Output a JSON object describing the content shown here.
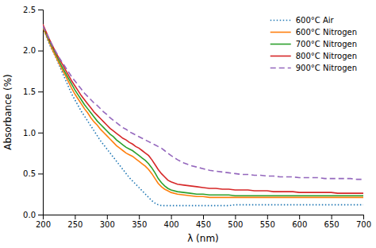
{
  "chart_data": {
    "type": "line",
    "xlabel": "λ (nm)",
    "ylabel": "Absorbance (%)",
    "xlim": [
      200,
      700
    ],
    "ylim": [
      0,
      2.5
    ],
    "xticks": [
      200,
      250,
      300,
      350,
      400,
      450,
      500,
      550,
      600,
      650,
      700
    ],
    "yticks": [
      {
        "value": 0,
        "label": "0.0"
      },
      0.5,
      {
        "value": 1.0,
        "label": "1.0"
      },
      1.5,
      {
        "value": 2.0,
        "label": "2.0"
      },
      2.5
    ],
    "legend": "upper right",
    "grid": false,
    "x": [
      200,
      205,
      210,
      215,
      220,
      225,
      230,
      235,
      240,
      245,
      250,
      255,
      260,
      265,
      270,
      275,
      280,
      285,
      290,
      295,
      300,
      305,
      310,
      315,
      320,
      325,
      330,
      335,
      340,
      345,
      350,
      355,
      360,
      365,
      370,
      375,
      380,
      385,
      390,
      395,
      400,
      410,
      420,
      430,
      440,
      450,
      460,
      470,
      480,
      490,
      500,
      510,
      520,
      530,
      540,
      550,
      560,
      570,
      580,
      590,
      600,
      610,
      620,
      630,
      640,
      650,
      660,
      670,
      680,
      690,
      700
    ],
    "series": [
      {
        "name": "600°C Air",
        "line_style": "dotted",
        "values": [
          2.28,
          2.18,
          2.08,
          2.0,
          1.92,
          1.83,
          1.74,
          1.65,
          1.56,
          1.47,
          1.4,
          1.33,
          1.26,
          1.2,
          1.14,
          1.08,
          1.02,
          0.96,
          0.9,
          0.85,
          0.8,
          0.75,
          0.7,
          0.65,
          0.6,
          0.55,
          0.5,
          0.45,
          0.41,
          0.37,
          0.33,
          0.29,
          0.25,
          0.21,
          0.17,
          0.14,
          0.12,
          0.11,
          0.11,
          0.11,
          0.11,
          0.11,
          0.11,
          0.11,
          0.11,
          0.11,
          0.11,
          0.11,
          0.11,
          0.11,
          0.12,
          0.12,
          0.12,
          0.12,
          0.12,
          0.12,
          0.12,
          0.12,
          0.12,
          0.12,
          0.12,
          0.12,
          0.12,
          0.12,
          0.12,
          0.12,
          0.12,
          0.12,
          0.12,
          0.12,
          0.12
        ]
      },
      {
        "name": "600°C Nitrogen",
        "line_style": "solid",
        "values": [
          2.28,
          2.19,
          2.1,
          2.01,
          1.93,
          1.85,
          1.77,
          1.7,
          1.62,
          1.54,
          1.47,
          1.41,
          1.35,
          1.29,
          1.24,
          1.18,
          1.13,
          1.09,
          1.04,
          1.0,
          0.96,
          0.92,
          0.88,
          0.84,
          0.81,
          0.78,
          0.75,
          0.73,
          0.71,
          0.68,
          0.65,
          0.62,
          0.59,
          0.55,
          0.5,
          0.44,
          0.38,
          0.34,
          0.31,
          0.29,
          0.27,
          0.25,
          0.24,
          0.23,
          0.22,
          0.22,
          0.21,
          0.21,
          0.21,
          0.21,
          0.21,
          0.21,
          0.21,
          0.21,
          0.21,
          0.21,
          0.21,
          0.21,
          0.21,
          0.21,
          0.21,
          0.21,
          0.21,
          0.21,
          0.21,
          0.21,
          0.21,
          0.21,
          0.21,
          0.21,
          0.21
        ]
      },
      {
        "name": "700°C Nitrogen",
        "line_style": "solid",
        "values": [
          2.3,
          2.21,
          2.12,
          2.04,
          1.96,
          1.88,
          1.8,
          1.73,
          1.66,
          1.59,
          1.52,
          1.46,
          1.4,
          1.34,
          1.29,
          1.24,
          1.19,
          1.14,
          1.1,
          1.06,
          1.02,
          0.98,
          0.95,
          0.91,
          0.88,
          0.85,
          0.82,
          0.8,
          0.78,
          0.75,
          0.72,
          0.69,
          0.66,
          0.62,
          0.57,
          0.51,
          0.44,
          0.39,
          0.35,
          0.32,
          0.3,
          0.28,
          0.27,
          0.26,
          0.25,
          0.25,
          0.24,
          0.24,
          0.24,
          0.24,
          0.23,
          0.23,
          0.23,
          0.23,
          0.23,
          0.23,
          0.23,
          0.23,
          0.23,
          0.23,
          0.23,
          0.23,
          0.23,
          0.23,
          0.23,
          0.23,
          0.23,
          0.23,
          0.23,
          0.23,
          0.23
        ]
      },
      {
        "name": "800°C Nitrogen",
        "line_style": "solid",
        "values": [
          2.32,
          2.23,
          2.14,
          2.06,
          1.98,
          1.91,
          1.84,
          1.77,
          1.7,
          1.63,
          1.57,
          1.51,
          1.45,
          1.4,
          1.35,
          1.3,
          1.25,
          1.21,
          1.17,
          1.13,
          1.09,
          1.05,
          1.02,
          0.99,
          0.96,
          0.93,
          0.91,
          0.88,
          0.86,
          0.83,
          0.81,
          0.78,
          0.75,
          0.72,
          0.67,
          0.61,
          0.55,
          0.5,
          0.46,
          0.42,
          0.4,
          0.37,
          0.36,
          0.35,
          0.34,
          0.33,
          0.32,
          0.32,
          0.31,
          0.31,
          0.3,
          0.3,
          0.3,
          0.29,
          0.29,
          0.29,
          0.28,
          0.28,
          0.28,
          0.28,
          0.27,
          0.27,
          0.27,
          0.27,
          0.27,
          0.27,
          0.26,
          0.26,
          0.26,
          0.26,
          0.26
        ]
      },
      {
        "name": "900°C Nitrogen",
        "line_style": "dashed",
        "values": [
          2.3,
          2.22,
          2.14,
          2.06,
          1.99,
          1.92,
          1.86,
          1.8,
          1.74,
          1.68,
          1.63,
          1.58,
          1.53,
          1.48,
          1.44,
          1.4,
          1.36,
          1.33,
          1.29,
          1.25,
          1.22,
          1.18,
          1.15,
          1.12,
          1.09,
          1.06,
          1.04,
          1.01,
          0.99,
          0.97,
          0.95,
          0.93,
          0.91,
          0.89,
          0.87,
          0.85,
          0.83,
          0.81,
          0.78,
          0.75,
          0.72,
          0.67,
          0.63,
          0.6,
          0.58,
          0.56,
          0.54,
          0.53,
          0.52,
          0.51,
          0.5,
          0.49,
          0.49,
          0.48,
          0.48,
          0.47,
          0.47,
          0.46,
          0.46,
          0.46,
          0.45,
          0.45,
          0.45,
          0.45,
          0.44,
          0.44,
          0.44,
          0.44,
          0.44,
          0.43,
          0.43
        ]
      }
    ]
  }
}
